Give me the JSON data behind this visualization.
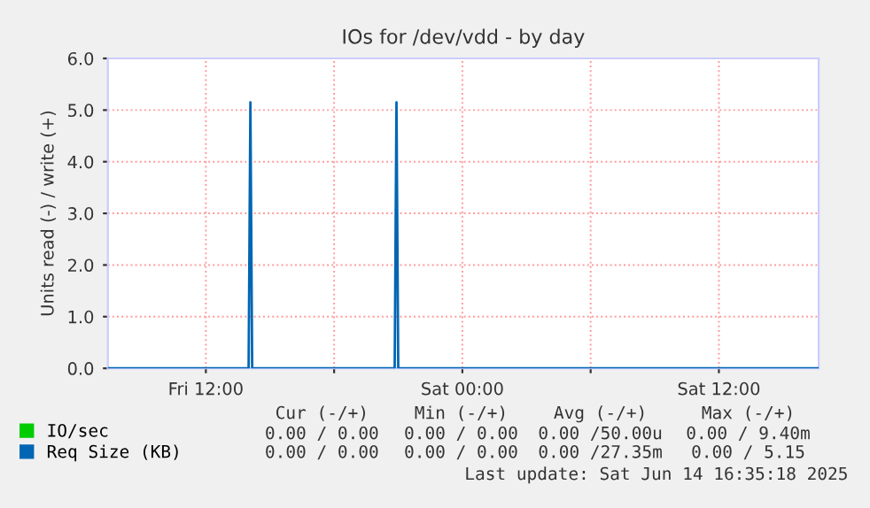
{
  "chart_data": {
    "type": "line",
    "title": "IOs for /dev/vdd - by day",
    "ylabel": "Units read (-) / write (+)",
    "x": [
      "2025-06-13T07:25",
      "2025-06-13T14:00",
      "2025-06-13T14:05",
      "2025-06-13T14:10",
      "2025-06-13T20:50",
      "2025-06-13T20:55",
      "2025-06-13T21:00",
      "2025-06-14T16:40"
    ],
    "series": [
      {
        "name": "IO/sec",
        "color": "#00cc00",
        "values": [
          null,
          null,
          null,
          null,
          null,
          null,
          null,
          null
        ]
      },
      {
        "name": "Req Size (KB)",
        "color": "#0066b3",
        "values": [
          0,
          0,
          5.15,
          0,
          0,
          5.15,
          0,
          0
        ]
      }
    ],
    "xlim": [
      "2025-06-13T07:25",
      "2025-06-14T16:40"
    ],
    "xticks": [
      {
        "value": "2025-06-13T12:00",
        "label": "Fri 12:00"
      },
      {
        "value": "2025-06-13T18:00",
        "label": null
      },
      {
        "value": "2025-06-14T00:00",
        "label": "Sat 00:00"
      },
      {
        "value": "2025-06-14T06:00",
        "label": null
      },
      {
        "value": "2025-06-14T12:00",
        "label": "Sat 12:00"
      }
    ],
    "ylim": [
      0,
      6
    ],
    "yticks": [
      {
        "value": 0,
        "label": "0.0"
      },
      {
        "value": 1,
        "label": "1.0"
      },
      {
        "value": 2,
        "label": "2.0"
      },
      {
        "value": 3,
        "label": "3.0"
      },
      {
        "value": 4,
        "label": "4.0"
      },
      {
        "value": 5,
        "label": "5.0"
      },
      {
        "value": 6,
        "label": "6.0"
      }
    ],
    "grid": true,
    "legend": "bottom",
    "marker": "none",
    "line_style": "solid",
    "annotations": [
      "Cur (-/+)",
      "Min (-/+)",
      "Avg (-/+)",
      "Max (-/+)",
      "0.00 / 0.00",
      "0.00 / 0.00",
      "0.00 /50.00u",
      "0.00 / 9.40m",
      "0.00 / 0.00",
      "0.00 / 0.00",
      "0.00 /27.35m",
      "0.00 / 5.15",
      "Last update: Sat Jun 14 16:35:18 2025"
    ]
  }
}
